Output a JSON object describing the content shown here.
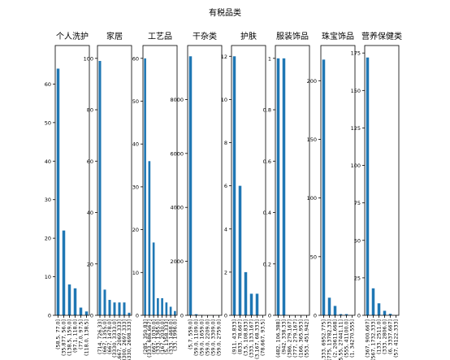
{
  "figure_title": "有税品类",
  "chart_data": [
    {
      "type": "bar",
      "title": "个人洗护",
      "categories": [
        "(58.5, 77.0]",
        "(35.877, 56.0]",
        "(138.5, 159.0]",
        "(97.1, 118.0]",
        "(77.0, 97.5]",
        "(118.0, 138.5]"
      ],
      "values": [
        64,
        22,
        8,
        7,
        2,
        1
      ],
      "ylim": [
        0,
        70
      ],
      "yticks": [
        0,
        10,
        20,
        30,
        40,
        50,
        60
      ]
    },
    {
      "type": "bar",
      "title": "家居",
      "categories": [
        "(714, 726.33]",
        "(667, 1355.0]",
        "(667, 1478.0]",
        "(3330, 3333.0]",
        "(1440.667, 2069.333]",
        "(3300, 2697.333]",
        "(6330, 2698.333]"
      ],
      "values": [
        99,
        10,
        6,
        5,
        5,
        5,
        1
      ],
      "ylim": [
        0,
        105
      ],
      "yticks": [
        0,
        20,
        40,
        60,
        80,
        100
      ]
    },
    {
      "type": "bar",
      "title": "工艺品",
      "categories": [
        "(285, 350.83]",
        "(333, 686.667]",
        "(667, 1030.0]",
        "(333, 1365.0]",
        "(167, 2030.0]",
        "(5, 1358.333]",
        "(333, 1468.0]",
        "(33, 1996.0]"
      ],
      "values": [
        60,
        36,
        17,
        4,
        4,
        3,
        2,
        1
      ],
      "ylim": [
        0,
        63
      ],
      "yticks": [
        0,
        10,
        20,
        30,
        40,
        50,
        60
      ]
    },
    {
      "type": "bar",
      "title": "干杂类",
      "categories": [
        "(5.7, 559.0]",
        "(59.0, 1109.0]",
        "(59.0, 1659.0]",
        "(59.0, 2209.0]",
        "(59.0, 3309.0]",
        "(59.0, 2759.0]"
      ],
      "values": [
        9600,
        40,
        10,
        5,
        3,
        2
      ],
      "ylim": [
        0,
        10000
      ],
      "yticks": [
        0,
        2000,
        4000,
        6000,
        8000
      ]
    },
    {
      "type": "bar",
      "title": "护肤",
      "categories": [
        "(911, 43.833]",
        "(833, 78.667]",
        "(3.5, 108.833]",
        "(333, 133.167]",
        "(3.167, 68.333]",
        "(78.667, 93.5]"
      ],
      "values": [
        12,
        6,
        2,
        1,
        1,
        0
      ],
      "ylim": [
        0,
        12.5
      ],
      "yticks": [
        0,
        2,
        4,
        6,
        8,
        10,
        12
      ]
    },
    {
      "type": "bar",
      "title": "服装饰品",
      "categories": [
        "(482, 106.388]",
        "(942, 338.33]",
        "(386, 279.167]",
        "(777, 279.167]",
        "(166, 365.953]",
        "(553, 451.942]"
      ],
      "values": [
        1.0,
        1.0,
        0,
        0,
        0,
        0
      ],
      "ylim": [
        0,
        1.05
      ],
      "yticks": [
        0.0,
        0.2,
        0.4,
        0.6,
        0.8,
        1.0
      ]
    },
    {
      "type": "bar",
      "title": "珠宝饰品",
      "categories": [
        "(5.333, 6952.775]",
        "(775, 13782.33]",
        "(2, 20611.668]",
        "(5.55, 27441.11]",
        "(555, 41100.0]",
        "(1, 34270.555]"
      ],
      "values": [
        218,
        15,
        8,
        1,
        1,
        0
      ],
      "ylim": [
        0,
        230
      ],
      "yticks": [
        0,
        50,
        100,
        150,
        200
      ]
    },
    {
      "type": "bar",
      "title": "营养保健类",
      "categories": [
        "(367, 900.667]",
        "(567, 1732.333]",
        "(133, 2511.0]",
        "(333, 2806.0]",
        "(6, 3337.667]",
        "(57, 4122.333]"
      ],
      "values": [
        172,
        18,
        8,
        3,
        1,
        0
      ],
      "ylim": [
        0,
        180
      ],
      "yticks": [
        0,
        25,
        50,
        75,
        100,
        125,
        150,
        175
      ]
    }
  ]
}
